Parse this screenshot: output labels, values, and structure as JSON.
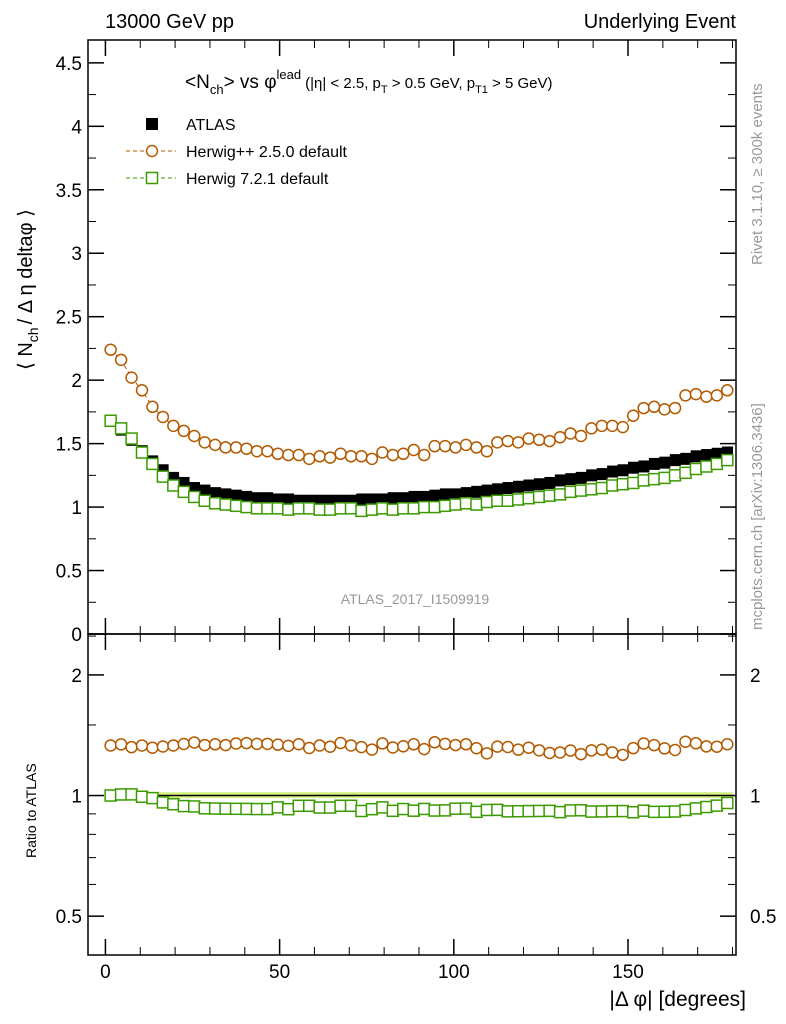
{
  "header": {
    "left": "13000 GeV pp",
    "right": "Underlying Event"
  },
  "side": {
    "rivet": "Rivet 3.1.10, ≥ 300k events",
    "mcplots": "mcplots.cern.ch [arXiv:1306.3436]"
  },
  "analysis_id": "ATLAS_2017_I1509919",
  "chart_data": {
    "type": "scatter",
    "title": "<N_ch> vs φ^lead (|η| < 2.5, p_T > 0.5 GeV, p_T1 > 5 GeV)",
    "title_parts": {
      "main": "<N",
      "sub1": "ch",
      "mid": "> vs φ",
      "sup": "lead",
      "cuts1": "(|η| < 2.5, p",
      "sub2": "T",
      "cuts2": " > 0.5 GeV, p",
      "sub3": "T1",
      "cuts3": " > 5 GeV)"
    },
    "ylabel": "⟨ N_ch / Δη deltaφ ⟩",
    "ylabel_parts": {
      "a": "⟨ N",
      "sub": "ch",
      "b": "/ Δ η deltaφ ⟩"
    },
    "ratio_ylabel": "Ratio to ATLAS",
    "xlabel": "|Δ φ| [degrees]",
    "xlim": [
      -5,
      181
    ],
    "ylim": [
      0,
      4.68
    ],
    "ratio_ylim": [
      0.4,
      2.53
    ],
    "ratio_scale": "log",
    "xticks": [
      0,
      50,
      100,
      150
    ],
    "yticks": [
      0,
      0.5,
      1,
      1.5,
      2,
      2.5,
      3,
      3.5,
      4,
      4.5
    ],
    "ytick_labels": [
      "0",
      "0.5",
      "1",
      "1.5",
      "2",
      "2.5",
      "3",
      "3.5",
      "4",
      "4.5"
    ],
    "ratio_yticks": [
      0.5,
      1,
      2
    ],
    "ratio_ytick_labels": [
      "0.5",
      "1",
      "2"
    ],
    "xtick_labels": [
      "0",
      "50",
      "100",
      "150"
    ],
    "legend_position": "top-left",
    "bin_width": 3,
    "x": [
      1.5,
      4.5,
      7.5,
      10.5,
      13.5,
      16.5,
      19.5,
      22.5,
      25.5,
      28.5,
      31.5,
      34.5,
      37.5,
      40.5,
      43.5,
      46.5,
      49.5,
      52.5,
      55.5,
      58.5,
      61.5,
      64.5,
      67.5,
      70.5,
      73.5,
      76.5,
      79.5,
      82.5,
      85.5,
      88.5,
      91.5,
      94.5,
      97.5,
      100.5,
      103.5,
      106.5,
      109.5,
      112.5,
      115.5,
      118.5,
      121.5,
      124.5,
      127.5,
      130.5,
      133.5,
      136.5,
      139.5,
      142.5,
      145.5,
      148.5,
      151.5,
      154.5,
      157.5,
      160.5,
      163.5,
      166.5,
      169.5,
      172.5,
      175.5,
      178.5
    ],
    "series": [
      {
        "name": "ATLAS",
        "color": "#000000",
        "marker": "filled-square",
        "values": [
          1.68,
          1.61,
          1.53,
          1.44,
          1.36,
          1.29,
          1.23,
          1.19,
          1.15,
          1.13,
          1.11,
          1.1,
          1.09,
          1.08,
          1.07,
          1.07,
          1.06,
          1.06,
          1.05,
          1.05,
          1.05,
          1.05,
          1.05,
          1.05,
          1.06,
          1.06,
          1.06,
          1.07,
          1.07,
          1.08,
          1.08,
          1.09,
          1.1,
          1.1,
          1.11,
          1.12,
          1.13,
          1.14,
          1.15,
          1.16,
          1.17,
          1.18,
          1.19,
          1.21,
          1.22,
          1.23,
          1.25,
          1.26,
          1.28,
          1.29,
          1.31,
          1.32,
          1.34,
          1.35,
          1.37,
          1.38,
          1.4,
          1.41,
          1.42,
          1.43
        ]
      },
      {
        "name": "Herwig++ 2.5.0 default",
        "color": "#b35900",
        "marker": "open-circle",
        "values": [
          2.24,
          2.16,
          2.02,
          1.92,
          1.79,
          1.71,
          1.64,
          1.6,
          1.56,
          1.51,
          1.49,
          1.47,
          1.47,
          1.46,
          1.44,
          1.44,
          1.42,
          1.41,
          1.41,
          1.38,
          1.4,
          1.39,
          1.42,
          1.4,
          1.4,
          1.38,
          1.43,
          1.41,
          1.42,
          1.45,
          1.41,
          1.48,
          1.48,
          1.47,
          1.49,
          1.47,
          1.44,
          1.51,
          1.52,
          1.51,
          1.54,
          1.53,
          1.52,
          1.55,
          1.58,
          1.56,
          1.62,
          1.64,
          1.64,
          1.63,
          1.72,
          1.78,
          1.79,
          1.77,
          1.78,
          1.88,
          1.89,
          1.87,
          1.88,
          1.92
        ]
      },
      {
        "name": "Herwig 7.2.1 default",
        "color": "#3a9a00",
        "marker": "open-square",
        "values": [
          1.68,
          1.62,
          1.54,
          1.43,
          1.34,
          1.24,
          1.17,
          1.12,
          1.08,
          1.05,
          1.03,
          1.02,
          1.01,
          1.0,
          0.99,
          0.99,
          0.99,
          0.98,
          0.99,
          0.99,
          0.98,
          0.98,
          0.99,
          0.99,
          0.97,
          0.98,
          0.99,
          0.98,
          0.99,
          0.99,
          1.0,
          1.0,
          1.01,
          1.02,
          1.03,
          1.02,
          1.04,
          1.05,
          1.05,
          1.06,
          1.07,
          1.08,
          1.09,
          1.1,
          1.12,
          1.13,
          1.14,
          1.15,
          1.17,
          1.18,
          1.19,
          1.21,
          1.22,
          1.23,
          1.25,
          1.27,
          1.3,
          1.32,
          1.34,
          1.37
        ]
      }
    ]
  }
}
